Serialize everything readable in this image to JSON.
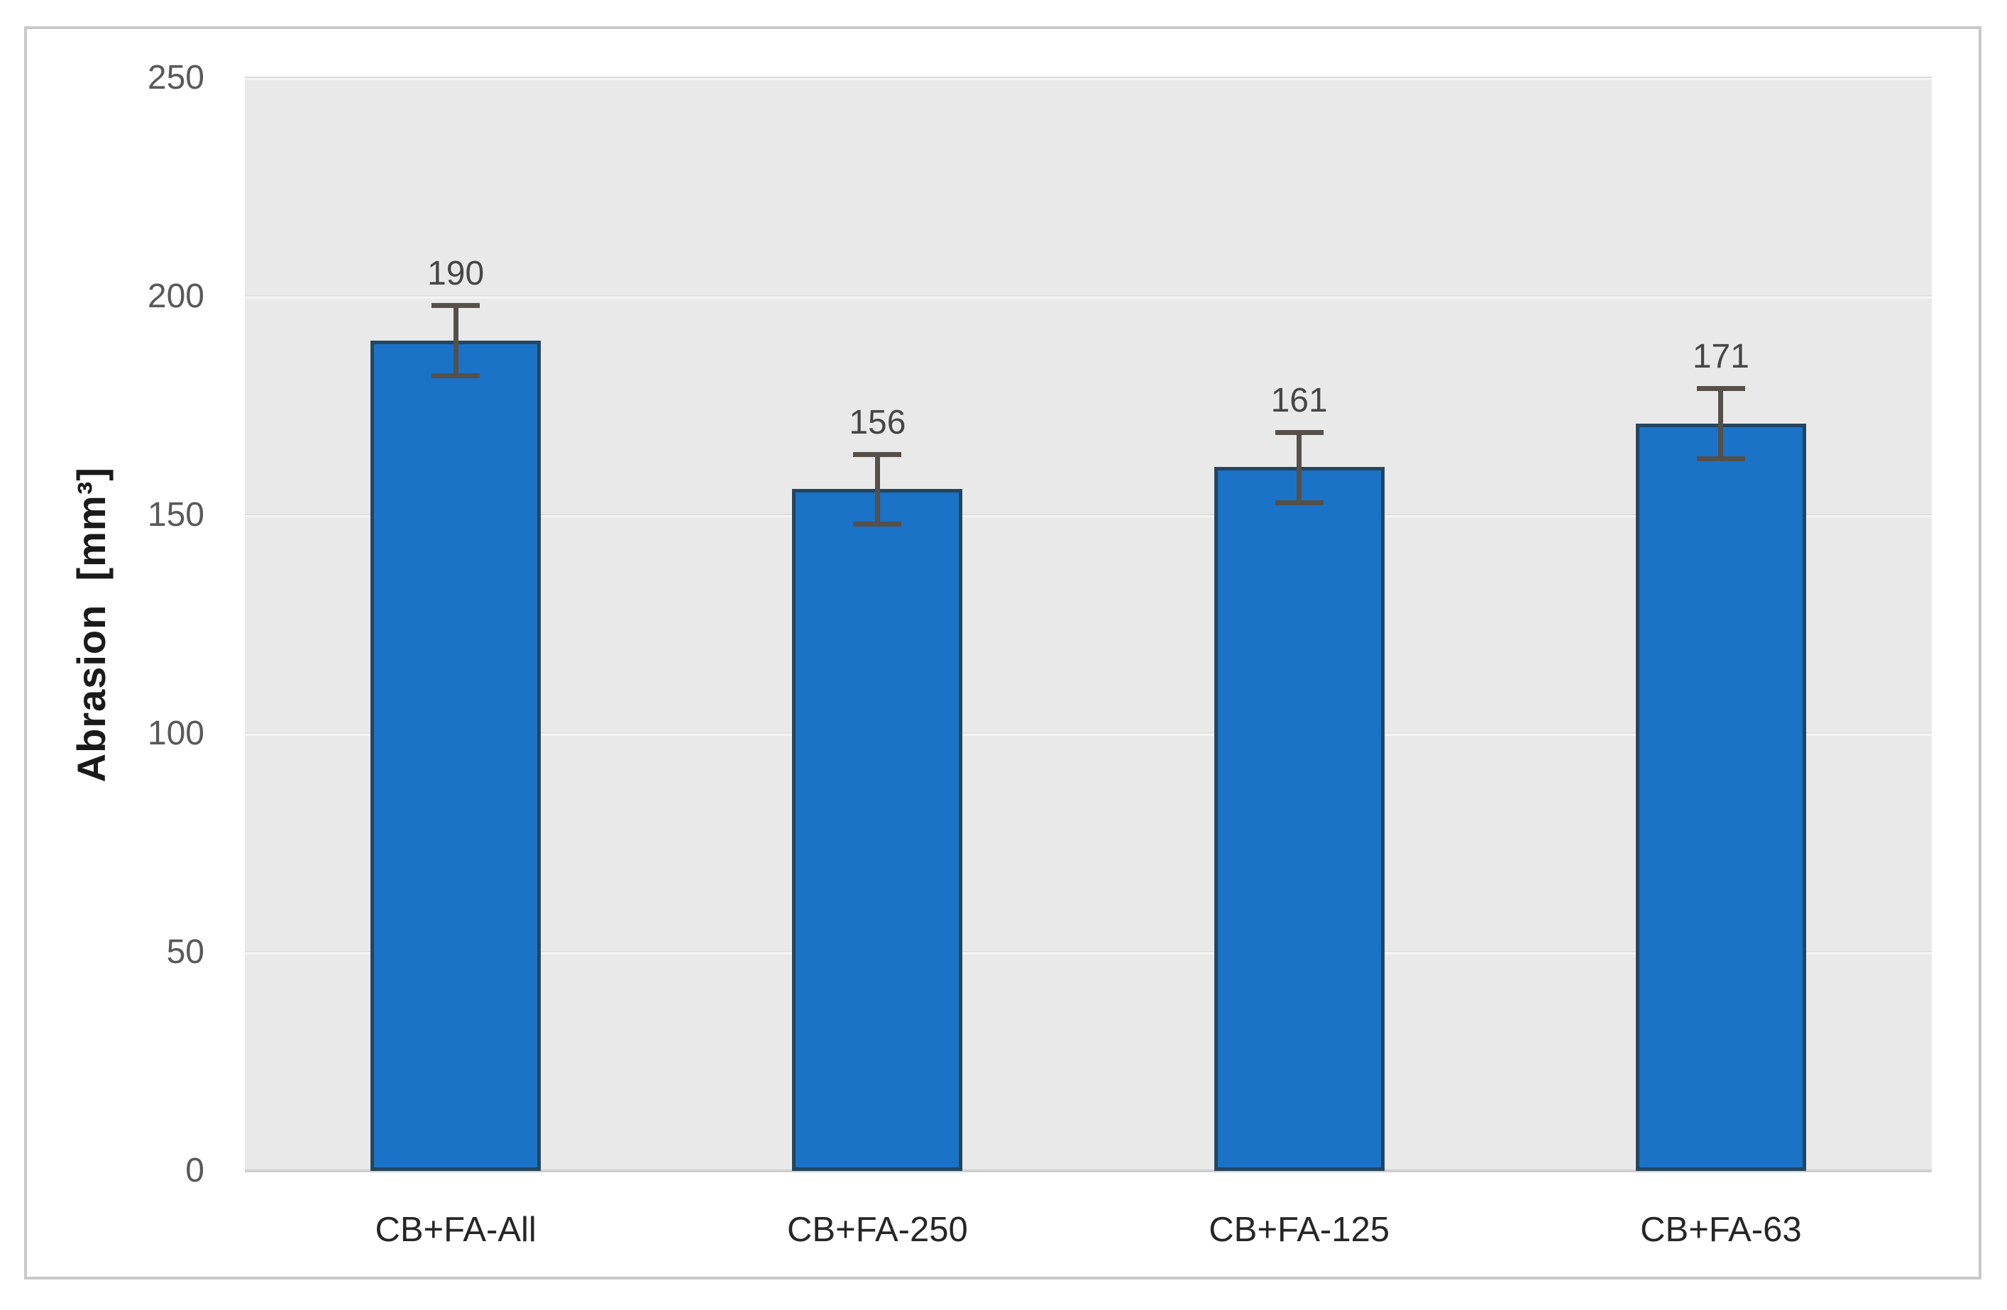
{
  "chart_data": {
    "type": "bar",
    "title": "",
    "categories": [
      "CB+FA-All",
      "CB+FA-250",
      "CB+FA-125",
      "CB+FA-63"
    ],
    "values": [
      190,
      156,
      161,
      171
    ],
    "data_labels": [
      "190",
      "156",
      "161",
      "171"
    ],
    "error_bars_plus_minus": [
      8,
      8,
      8,
      8
    ],
    "xlabel": "",
    "ylabel": "Abrasion  [mm³]",
    "ylim": [
      0,
      250
    ],
    "yticks": [
      0,
      50,
      100,
      150,
      200,
      250
    ],
    "ytick_labels": [
      "0",
      "50",
      "100",
      "150",
      "200",
      "250"
    ],
    "grid": "horizontal",
    "legend": "none",
    "colors": {
      "bar_fill": "#1B73C7",
      "bar_border": "#24455F",
      "error_bar": "#55504A",
      "plot_background": "#E9E9E9",
      "gridline": "#F4F4F4",
      "axis_line": "#CFCFCF",
      "figure_border": "#C9C9C9",
      "y_tick_text": "#595959",
      "data_label_text": "#464646",
      "category_text": "#262626",
      "axis_title_text": "#1A1A1A"
    }
  }
}
